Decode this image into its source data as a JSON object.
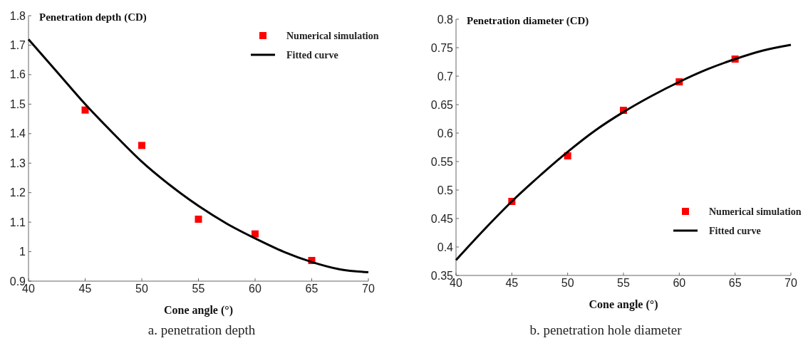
{
  "chart_data": [
    {
      "type": "scatter",
      "title": "a. penetration depth",
      "xlabel": "Cone angle (°)",
      "ylabel": "Penetration depth (CD)",
      "x": [
        45,
        50,
        55,
        60,
        65
      ],
      "xlim": [
        40,
        70
      ],
      "xticks": [
        40,
        45,
        50,
        55,
        60,
        65,
        70
      ],
      "ylim": [
        0.9,
        1.8
      ],
      "yticks": [
        0.9,
        1,
        1.1,
        1.2,
        1.3,
        1.4,
        1.5,
        1.6,
        1.7,
        1.8
      ],
      "legend": "top right",
      "series": [
        {
          "name": "Numerical simulation",
          "color": "#ff0000",
          "marker": "square",
          "values": [
            1.48,
            1.36,
            1.11,
            1.06,
            0.97
          ]
        },
        {
          "name": "Fitted curve",
          "type": "line",
          "color": "#000000",
          "line_style": "solid",
          "x": [
            40,
            42.5,
            45,
            47.5,
            50,
            52.5,
            55,
            57.5,
            60,
            62.5,
            65,
            67.5,
            70
          ],
          "values": [
            1.72,
            1.61,
            1.5,
            1.4,
            1.305,
            1.225,
            1.155,
            1.095,
            1.045,
            1.0,
            0.965,
            0.94,
            0.93
          ]
        }
      ]
    },
    {
      "type": "scatter",
      "title": "b. penetration hole diameter",
      "xlabel": "Cone angle (°)",
      "ylabel": "Penetration diameter (CD)",
      "x": [
        45,
        50,
        55,
        60,
        65
      ],
      "xlim": [
        40,
        70
      ],
      "xticks": [
        40,
        45,
        50,
        55,
        60,
        65,
        70
      ],
      "ylim": [
        0.35,
        0.8
      ],
      "yticks": [
        0.35,
        0.4,
        0.45,
        0.5,
        0.55,
        0.6,
        0.65,
        0.7,
        0.75,
        0.8
      ],
      "legend": "right",
      "series": [
        {
          "name": "Numerical simulation",
          "color": "#ff0000",
          "marker": "square",
          "values": [
            0.48,
            0.56,
            0.64,
            0.69,
            0.73
          ]
        },
        {
          "name": "Fitted curve",
          "type": "line",
          "color": "#000000",
          "line_style": "solid",
          "x": [
            40,
            42.5,
            45,
            47.5,
            50,
            52.5,
            55,
            57.5,
            60,
            62.5,
            65,
            67.5,
            70
          ],
          "values": [
            0.377,
            0.43,
            0.48,
            0.525,
            0.567,
            0.605,
            0.637,
            0.665,
            0.69,
            0.712,
            0.73,
            0.745,
            0.755
          ]
        }
      ]
    }
  ]
}
